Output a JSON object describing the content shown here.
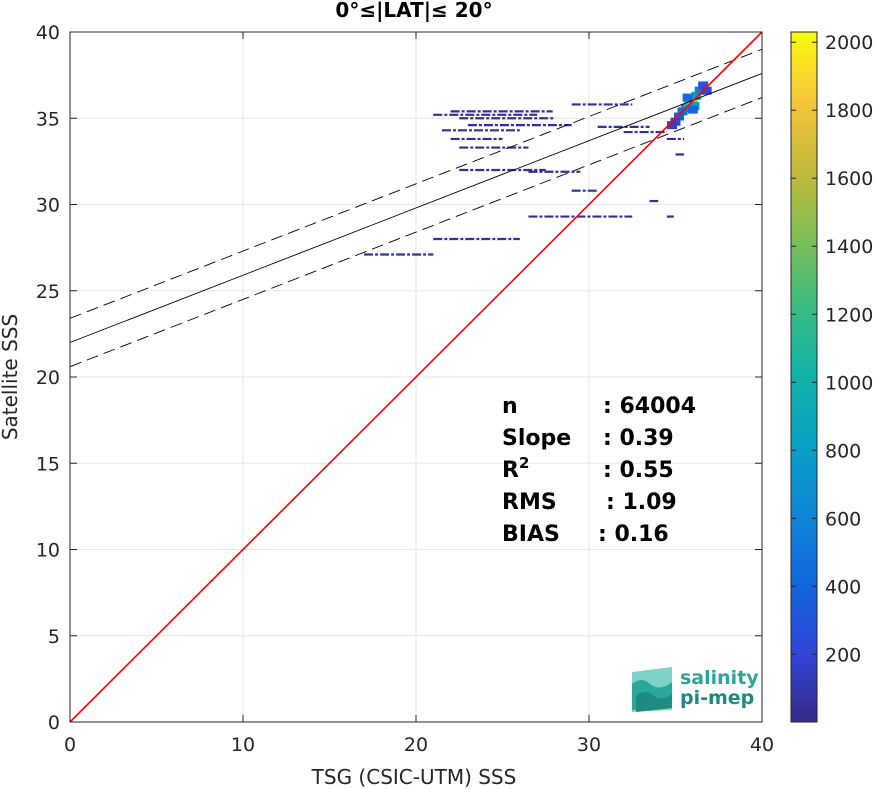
{
  "chart_data": {
    "type": "scatter",
    "title": "0°≤|LAT|≤ 20°",
    "xlabel": "TSG (CSIC-UTM) SSS",
    "ylabel": "Satellite SSS",
    "xlim": [
      0,
      40
    ],
    "ylim": [
      0,
      40
    ],
    "x_ticks": [
      "0",
      "10",
      "20",
      "30",
      "40"
    ],
    "y_ticks": [
      "0",
      "5",
      "10",
      "15",
      "20",
      "25",
      "30",
      "35",
      "40"
    ],
    "grid": true,
    "colorbar": {
      "range": [
        1,
        2030
      ],
      "ticks": [
        "200",
        "400",
        "600",
        "800",
        "1000",
        "1200",
        "1400",
        "1600",
        "1800",
        "2000"
      ],
      "tick_values": [
        200,
        400,
        600,
        800,
        1000,
        1200,
        1400,
        1600,
        1800,
        2000
      ],
      "colormap": "parula"
    },
    "lines": {
      "identity": {
        "slope": 1,
        "intercept": 0,
        "color": "#ff0000"
      },
      "regression": {
        "slope": 0.39,
        "intercept": 22.0,
        "color": "#000000"
      },
      "upper_bound": {
        "slope": 0.39,
        "intercept": 23.4,
        "color": "#000000"
      },
      "lower_bound": {
        "slope": 0.39,
        "intercept": 20.6,
        "color": "#000000"
      }
    },
    "density_segments": [
      {
        "y": 35.4,
        "x0": 22.0,
        "x1": 27.9
      },
      {
        "y": 35.2,
        "x0": 21.0,
        "x1": 27.0
      },
      {
        "y": 35.0,
        "x0": 22.5,
        "x1": 28.0
      },
      {
        "y": 34.6,
        "x0": 23.0,
        "x1": 29.0
      },
      {
        "y": 34.3,
        "x0": 21.5,
        "x1": 26.0
      },
      {
        "y": 33.8,
        "x0": 22.0,
        "x1": 25.0
      },
      {
        "y": 33.3,
        "x0": 22.5,
        "x1": 26.5
      },
      {
        "y": 32.0,
        "x0": 22.5,
        "x1": 27.5
      },
      {
        "y": 31.9,
        "x0": 26.5,
        "x1": 29.5
      },
      {
        "y": 30.8,
        "x0": 29.0,
        "x1": 30.5
      },
      {
        "y": 29.3,
        "x0": 26.5,
        "x1": 32.5
      },
      {
        "y": 28.0,
        "x0": 21.0,
        "x1": 26.0
      },
      {
        "y": 27.1,
        "x0": 17.0,
        "x1": 21.0
      },
      {
        "y": 35.8,
        "x0": 29.0,
        "x1": 32.5
      },
      {
        "y": 34.5,
        "x0": 30.5,
        "x1": 33.5
      },
      {
        "y": 34.2,
        "x0": 32.0,
        "x1": 34.5
      },
      {
        "y": 33.8,
        "x0": 34.5,
        "x1": 35.5
      },
      {
        "y": 32.9,
        "x0": 35.0,
        "x1": 35.5
      },
      {
        "y": 30.2,
        "x0": 33.5,
        "x1": 34.0
      },
      {
        "y": 29.3,
        "x0": 34.5,
        "x1": 34.9
      }
    ],
    "density_blob": {
      "points": [
        {
          "x": 35.6,
          "y": 35.6,
          "count": 700
        },
        {
          "x": 35.8,
          "y": 35.9,
          "count": 1100
        },
        {
          "x": 36.0,
          "y": 36.0,
          "count": 1500
        },
        {
          "x": 35.4,
          "y": 35.4,
          "count": 500
        },
        {
          "x": 36.2,
          "y": 36.3,
          "count": 900
        },
        {
          "x": 36.4,
          "y": 36.6,
          "count": 600
        },
        {
          "x": 35.2,
          "y": 35.1,
          "count": 350
        },
        {
          "x": 36.6,
          "y": 36.9,
          "count": 300
        },
        {
          "x": 35.0,
          "y": 34.8,
          "count": 200
        },
        {
          "x": 36.1,
          "y": 35.7,
          "count": 800
        },
        {
          "x": 35.7,
          "y": 36.2,
          "count": 450
        },
        {
          "x": 36.0,
          "y": 35.5,
          "count": 400
        },
        {
          "x": 34.8,
          "y": 34.6,
          "count": 150
        },
        {
          "x": 36.8,
          "y": 36.6,
          "count": 200
        }
      ]
    },
    "stats": [
      {
        "label": "n",
        "value": ": 64004"
      },
      {
        "label": "Slope",
        "value": ": 0.39"
      },
      {
        "label": "R",
        "sup": "2",
        "value": ": 0.55"
      },
      {
        "label": "RMS",
        "value": ": 1.09"
      },
      {
        "label": "BIAS",
        "value": ": 0.16"
      }
    ]
  },
  "logo": {
    "line1": "salinity",
    "line2": "pi-mep",
    "color": "#2aa69a",
    "color2": "#1e8b80"
  }
}
